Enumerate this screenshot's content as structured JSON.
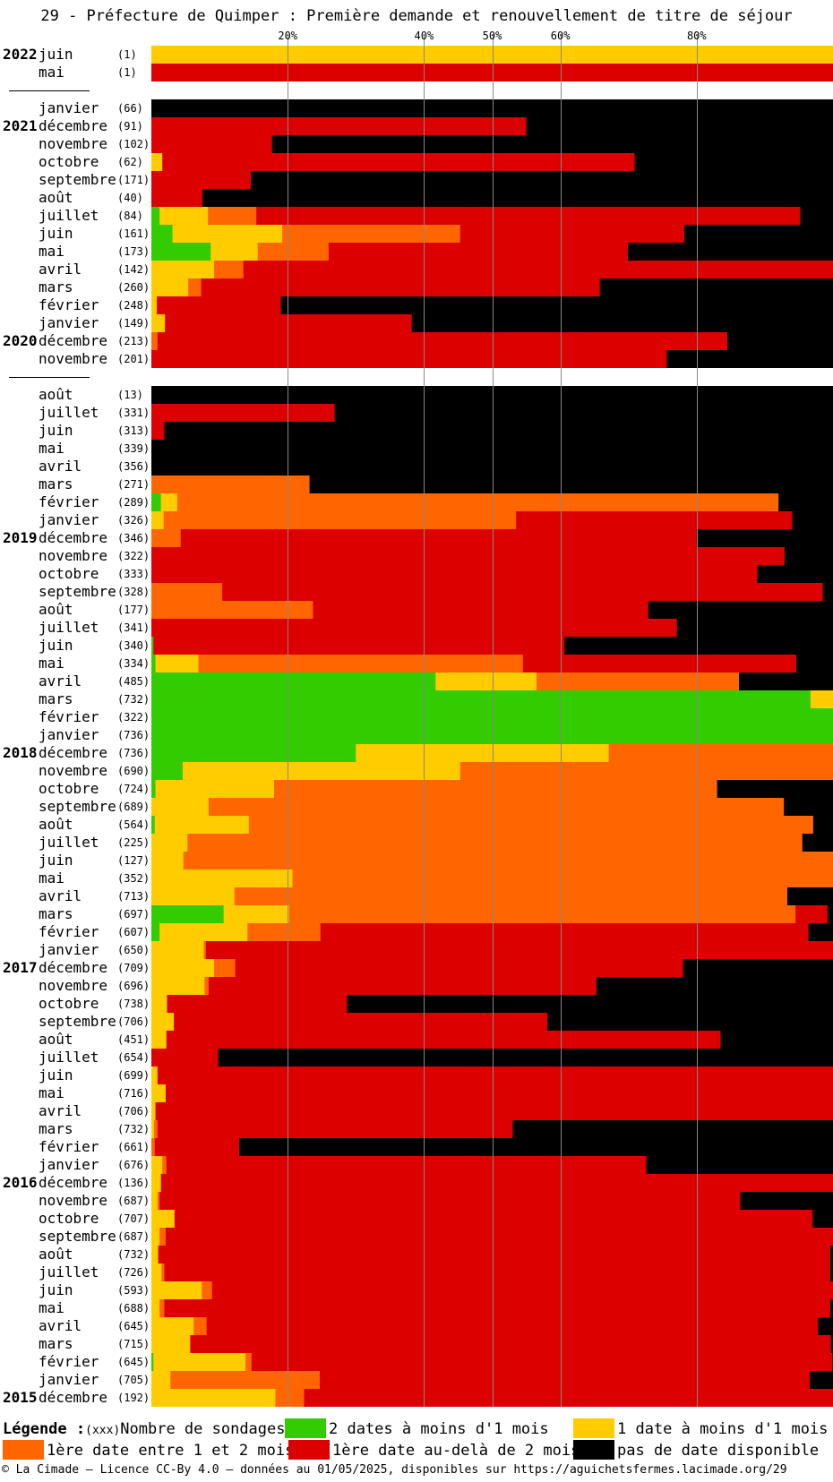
{
  "title": "29 - Préfecture de Quimper : Première demande et renouvellement de titre de séjour",
  "chart_data": {
    "type": "bar",
    "orientation": "horizontal-stacked-100",
    "xlim": [
      0,
      100
    ],
    "x_ticks": [
      20,
      40,
      50,
      60,
      80
    ],
    "x_tick_labels": [
      "20%",
      "40%",
      "50%",
      "60%",
      "80%"
    ],
    "grid": true,
    "categories_order": [
      "vert",
      "jaune",
      "orange",
      "rouge",
      "noir"
    ],
    "colors": {
      "vert": "#33cc00",
      "jaune": "#ffcc00",
      "orange": "#ff6600",
      "rouge": "#dd0000",
      "noir": "#000000"
    },
    "rows": [
      {
        "year": "2022",
        "month": "juin",
        "count": "(1)",
        "segments": [
          0,
          100,
          0,
          0,
          0
        ]
      },
      {
        "year": "",
        "month": "mai",
        "count": "(1)",
        "segments": [
          0,
          0,
          0,
          100,
          0
        ]
      },
      {
        "gap": true
      },
      {
        "year": "",
        "month": "janvier",
        "count": "(66)",
        "segments": [
          0,
          0,
          0,
          0,
          100
        ]
      },
      {
        "year": "2021",
        "month": "décembre",
        "count": "(91)",
        "segments": [
          0,
          0,
          0,
          55,
          45
        ]
      },
      {
        "year": "",
        "month": "novembre",
        "count": "(102)",
        "segments": [
          0,
          0,
          0,
          17.7,
          82.3
        ]
      },
      {
        "year": "",
        "month": "octobre",
        "count": "(62)",
        "segments": [
          0,
          1.6,
          0,
          69.3,
          29.1
        ]
      },
      {
        "year": "",
        "month": "septembre",
        "count": "(171)",
        "segments": [
          0,
          0,
          0,
          14.6,
          85.4
        ]
      },
      {
        "year": "",
        "month": "août",
        "count": "(40)",
        "segments": [
          0,
          0,
          0,
          7.5,
          92.5
        ]
      },
      {
        "year": "",
        "month": "juillet",
        "count": "(84)",
        "segments": [
          1.2,
          7.1,
          7.1,
          79.8,
          4.8
        ]
      },
      {
        "year": "",
        "month": "juin",
        "count": "(161)",
        "segments": [
          3.1,
          16.1,
          26.1,
          32.9,
          21.8
        ]
      },
      {
        "year": "",
        "month": "mai",
        "count": "(173)",
        "segments": [
          8.7,
          6.9,
          10.4,
          43.9,
          30.1
        ]
      },
      {
        "year": "",
        "month": "avril",
        "count": "(142)",
        "segments": [
          0,
          9.2,
          4.3,
          86.5,
          0
        ]
      },
      {
        "year": "",
        "month": "mars",
        "count": "(260)",
        "segments": [
          0,
          5.4,
          1.9,
          58.5,
          34.2
        ]
      },
      {
        "year": "",
        "month": "février",
        "count": "(248)",
        "segments": [
          0,
          0.8,
          0,
          18.2,
          81
        ]
      },
      {
        "year": "",
        "month": "janvier",
        "count": "(149)",
        "segments": [
          0,
          2,
          0,
          36.2,
          61.8
        ]
      },
      {
        "year": "2020",
        "month": "décembre",
        "count": "(213)",
        "segments": [
          0,
          0,
          0.9,
          83.6,
          15.5
        ]
      },
      {
        "year": "",
        "month": "novembre",
        "count": "(201)",
        "segments": [
          0,
          0,
          0,
          75.6,
          24.4
        ]
      },
      {
        "gap": true
      },
      {
        "year": "",
        "month": "août",
        "count": "(13)",
        "segments": [
          0,
          0,
          0,
          0,
          100
        ]
      },
      {
        "year": "",
        "month": "juillet",
        "count": "(331)",
        "segments": [
          0,
          0,
          0,
          26.9,
          73.1
        ]
      },
      {
        "year": "",
        "month": "juin",
        "count": "(313)",
        "segments": [
          0,
          0,
          0,
          1.9,
          98.1
        ]
      },
      {
        "year": "",
        "month": "mai",
        "count": "(339)",
        "segments": [
          0,
          0,
          0,
          0,
          100
        ]
      },
      {
        "year": "",
        "month": "avril",
        "count": "(356)",
        "segments": [
          0,
          0,
          0,
          0,
          100
        ]
      },
      {
        "year": "",
        "month": "mars",
        "count": "(271)",
        "segments": [
          0,
          0,
          23.2,
          0,
          76.8
        ]
      },
      {
        "year": "",
        "month": "février",
        "count": "(289)",
        "segments": [
          1.4,
          2.4,
          88.2,
          0,
          8
        ]
      },
      {
        "year": "",
        "month": "janvier",
        "count": "(326)",
        "segments": [
          0,
          1.8,
          51.7,
          40.5,
          6
        ]
      },
      {
        "year": "2019",
        "month": "décembre",
        "count": "(346)",
        "segments": [
          0,
          0,
          4.3,
          75.7,
          20
        ]
      },
      {
        "year": "",
        "month": "novembre",
        "count": "(322)",
        "segments": [
          0,
          0,
          0,
          92.9,
          7.1
        ]
      },
      {
        "year": "",
        "month": "octobre",
        "count": "(333)",
        "segments": [
          0,
          0,
          0,
          88.9,
          11.1
        ]
      },
      {
        "year": "",
        "month": "septembre",
        "count": "(328)",
        "segments": [
          0,
          0,
          10.4,
          88.1,
          1.5
        ]
      },
      {
        "year": "",
        "month": "août",
        "count": "(177)",
        "segments": [
          0,
          0,
          23.7,
          49.2,
          27.1
        ]
      },
      {
        "year": "",
        "month": "juillet",
        "count": "(341)",
        "segments": [
          0,
          0,
          0,
          77.1,
          22.9
        ]
      },
      {
        "year": "",
        "month": "juin",
        "count": "(340)",
        "segments": [
          0.3,
          0,
          0,
          60.3,
          39.4
        ]
      },
      {
        "year": "",
        "month": "mai",
        "count": "(334)",
        "segments": [
          0.6,
          6.3,
          47.6,
          40.1,
          5.4
        ]
      },
      {
        "year": "",
        "month": "avril",
        "count": "(485)",
        "segments": [
          41.7,
          14.8,
          29.7,
          0,
          13.8
        ]
      },
      {
        "year": "",
        "month": "mars",
        "count": "(732)",
        "segments": [
          96.7,
          3.3,
          0,
          0,
          0
        ]
      },
      {
        "year": "",
        "month": "février",
        "count": "(322)",
        "segments": [
          100,
          0,
          0,
          0,
          0
        ]
      },
      {
        "year": "",
        "month": "janvier",
        "count": "(736)",
        "segments": [
          100,
          0,
          0,
          0,
          0
        ]
      },
      {
        "year": "2018",
        "month": "décembre",
        "count": "(736)",
        "segments": [
          30,
          37.1,
          32.9,
          0,
          0
        ]
      },
      {
        "year": "",
        "month": "novembre",
        "count": "(690)",
        "segments": [
          4.6,
          40.7,
          54.7,
          0,
          0
        ]
      },
      {
        "year": "",
        "month": "octobre",
        "count": "(724)",
        "segments": [
          0.6,
          17.4,
          65,
          0,
          17
        ]
      },
      {
        "year": "",
        "month": "septembre",
        "count": "(689)",
        "segments": [
          0,
          8.4,
          84.4,
          0,
          7.2
        ]
      },
      {
        "year": "",
        "month": "août",
        "count": "(564)",
        "segments": [
          0.5,
          13.8,
          82.8,
          0,
          2.9
        ]
      },
      {
        "year": "",
        "month": "juillet",
        "count": "(225)",
        "segments": [
          0,
          5.3,
          90.2,
          0,
          4.5
        ]
      },
      {
        "year": "",
        "month": "juin",
        "count": "(127)",
        "segments": [
          0,
          4.7,
          95.3,
          0,
          0
        ]
      },
      {
        "year": "",
        "month": "mai",
        "count": "(352)",
        "segments": [
          0,
          20.7,
          79.3,
          0,
          0
        ]
      },
      {
        "year": "",
        "month": "avril",
        "count": "(713)",
        "segments": [
          0,
          12.2,
          81.1,
          0,
          6.7
        ]
      },
      {
        "year": "",
        "month": "mars",
        "count": "(697)",
        "segments": [
          10.6,
          9.6,
          74.3,
          4.7,
          0.8
        ]
      },
      {
        "year": "",
        "month": "février",
        "count": "(607)",
        "segments": [
          1.2,
          12.9,
          10.7,
          71.6,
          3.6
        ]
      },
      {
        "year": "",
        "month": "janvier",
        "count": "(650)",
        "segments": [
          0,
          7.7,
          0.3,
          92,
          0
        ]
      },
      {
        "year": "2017",
        "month": "décembre",
        "count": "(709)",
        "segments": [
          0,
          9.2,
          3.1,
          65.7,
          22
        ]
      },
      {
        "year": "",
        "month": "novembre",
        "count": "(696)",
        "segments": [
          0,
          7.8,
          0.6,
          56.9,
          34.7
        ]
      },
      {
        "year": "",
        "month": "octobre",
        "count": "(738)",
        "segments": [
          0,
          2.3,
          0,
          26.4,
          71.3
        ]
      },
      {
        "year": "",
        "month": "septembre",
        "count": "(706)",
        "segments": [
          0,
          3.3,
          0,
          54.8,
          41.9
        ]
      },
      {
        "year": "",
        "month": "août",
        "count": "(451)",
        "segments": [
          0,
          2.2,
          0,
          81.3,
          16.5
        ]
      },
      {
        "year": "",
        "month": "juillet",
        "count": "(654)",
        "segments": [
          0,
          0,
          0,
          9.8,
          90.2
        ]
      },
      {
        "year": "",
        "month": "juin",
        "count": "(699)",
        "segments": [
          0,
          0.9,
          0,
          99.1,
          0
        ]
      },
      {
        "year": "",
        "month": "mai",
        "count": "(716)",
        "segments": [
          0,
          2.1,
          0,
          97.9,
          0
        ]
      },
      {
        "year": "",
        "month": "avril",
        "count": "(706)",
        "segments": [
          0,
          0.6,
          0,
          99.4,
          0
        ]
      },
      {
        "year": "",
        "month": "mars",
        "count": "(732)",
        "segments": [
          0,
          0.4,
          0.5,
          52.1,
          47
        ]
      },
      {
        "year": "",
        "month": "février",
        "count": "(661)",
        "segments": [
          0,
          0,
          0.5,
          12.4,
          87.1
        ]
      },
      {
        "year": "",
        "month": "janvier",
        "count": "(676)",
        "segments": [
          0,
          1.6,
          0.6,
          70.4,
          27.4
        ]
      },
      {
        "year": "2016",
        "month": "décembre",
        "count": "(136)",
        "segments": [
          0,
          1.4,
          0,
          98.6,
          0
        ]
      },
      {
        "year": "",
        "month": "novembre",
        "count": "(687)",
        "segments": [
          0,
          0.9,
          0.3,
          85.2,
          13.6
        ]
      },
      {
        "year": "",
        "month": "octobre",
        "count": "(707)",
        "segments": [
          0,
          3.4,
          0,
          93.6,
          3
        ]
      },
      {
        "year": "",
        "month": "septembre",
        "count": "(687)",
        "segments": [
          0,
          1.2,
          0.9,
          97.9,
          0
        ]
      },
      {
        "year": "",
        "month": "août",
        "count": "(732)",
        "segments": [
          0,
          1,
          0,
          98.6,
          0.4
        ]
      },
      {
        "year": "",
        "month": "juillet",
        "count": "(726)",
        "segments": [
          0,
          1.5,
          0.4,
          97.7,
          0.4
        ]
      },
      {
        "year": "",
        "month": "juin",
        "count": "(593)",
        "segments": [
          0,
          7.4,
          1.5,
          91.1,
          0
        ]
      },
      {
        "year": "",
        "month": "mai",
        "count": "(688)",
        "segments": [
          0,
          1.2,
          0.7,
          97.7,
          0.4
        ]
      },
      {
        "year": "",
        "month": "avril",
        "count": "(645)",
        "segments": [
          0,
          6.2,
          1.9,
          89.7,
          2.2
        ]
      },
      {
        "year": "",
        "month": "mars",
        "count": "(715)",
        "segments": [
          0,
          5.7,
          0,
          94,
          0.3
        ]
      },
      {
        "year": "",
        "month": "février",
        "count": "(645)",
        "segments": [
          0.3,
          13.5,
          0.9,
          85.2,
          0.1
        ]
      },
      {
        "year": "",
        "month": "janvier",
        "count": "(705)",
        "segments": [
          0,
          2.8,
          21.9,
          71.9,
          3.4
        ]
      },
      {
        "year": "2015",
        "month": "décembre",
        "count": "(192)",
        "segments": [
          0,
          18.2,
          4.2,
          77.6,
          0
        ]
      }
    ]
  },
  "legend": {
    "label": "Légende :",
    "count_marker": "(xxx)",
    "count_text": "Nombre de sondages",
    "items": [
      {
        "key": "vert",
        "text": "2 dates à moins d'1 mois"
      },
      {
        "key": "jaune",
        "text": "1 date à moins d'1 mois"
      },
      {
        "key": "orange",
        "text": "1ère date entre 1 et 2 mois"
      },
      {
        "key": "rouge",
        "text": "1ère date au-delà de 2 mois"
      },
      {
        "key": "noir",
        "text": "pas de date disponible"
      }
    ]
  },
  "footer": "© La Cimade — Licence CC-By 4.0 — données au 01/05/2025, disponibles sur https://aguichetsfermes.lacimade.org/29"
}
